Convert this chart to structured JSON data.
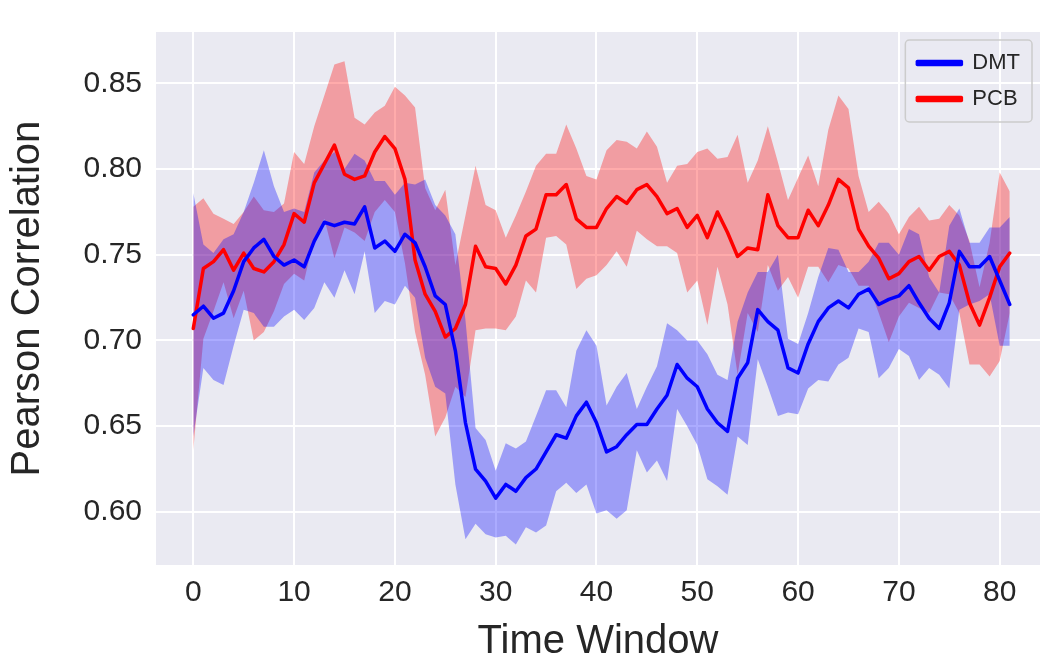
{
  "chart_data": {
    "type": "line",
    "xlabel": "Time Window",
    "ylabel": "Pearson Correlation",
    "x": [
      0,
      1,
      2,
      3,
      4,
      5,
      6,
      7,
      8,
      9,
      10,
      11,
      12,
      13,
      14,
      15,
      16,
      17,
      18,
      19,
      20,
      21,
      22,
      23,
      24,
      25,
      26,
      27,
      28,
      29,
      30,
      31,
      32,
      33,
      34,
      35,
      36,
      37,
      38,
      39,
      40,
      41,
      42,
      43,
      44,
      45,
      46,
      47,
      48,
      49,
      50,
      51,
      52,
      53,
      54,
      55,
      56,
      57,
      58,
      59,
      60,
      61,
      62,
      63,
      64,
      65,
      66,
      67,
      68,
      69,
      70,
      71,
      72,
      73,
      74,
      75,
      76,
      77,
      78,
      79,
      80,
      81
    ],
    "xlim": [
      -3.7,
      84
    ],
    "xticks": [
      0,
      10,
      20,
      30,
      40,
      50,
      60,
      70,
      80
    ],
    "ylim": [
      0.569,
      0.88
    ],
    "yticks": [
      {
        "value": 0.6,
        "label": "0.60"
      },
      {
        "value": 0.65,
        "label": "0.65"
      },
      {
        "value": 0.7,
        "label": "0.70"
      },
      {
        "value": 0.75,
        "label": "0.75"
      },
      {
        "value": 0.8,
        "label": "0.80"
      },
      {
        "value": 0.85,
        "label": "0.85"
      }
    ],
    "grid": true,
    "legend": "top right",
    "marker": "none",
    "line_style": "solid",
    "series": [
      {
        "name": "DMT",
        "color": "#0000ff",
        "values": [
          0.715,
          0.72,
          0.713,
          0.716,
          0.729,
          0.746,
          0.754,
          0.759,
          0.749,
          0.744,
          0.747,
          0.743,
          0.758,
          0.769,
          0.767,
          0.769,
          0.768,
          0.778,
          0.754,
          0.758,
          0.752,
          0.762,
          0.757,
          0.743,
          0.726,
          0.721,
          0.694,
          0.652,
          0.625,
          0.618,
          0.608,
          0.616,
          0.612,
          0.62,
          0.625,
          0.635,
          0.645,
          0.643,
          0.656,
          0.664,
          0.652,
          0.635,
          0.638,
          0.645,
          0.651,
          0.651,
          0.66,
          0.668,
          0.686,
          0.678,
          0.673,
          0.66,
          0.652,
          0.647,
          0.678,
          0.687,
          0.718,
          0.711,
          0.706,
          0.684,
          0.681,
          0.698,
          0.711,
          0.719,
          0.723,
          0.719,
          0.727,
          0.73,
          0.721,
          0.724,
          0.726,
          0.732,
          0.722,
          0.713,
          0.707,
          0.722,
          0.752,
          0.743,
          0.743,
          0.749,
          0.735,
          0.721
        ],
        "lower": [
          0.644,
          0.684,
          0.677,
          0.674,
          0.697,
          0.718,
          0.716,
          0.708,
          0.708,
          0.714,
          0.718,
          0.712,
          0.719,
          0.734,
          0.725,
          0.741,
          0.727,
          0.752,
          0.716,
          0.723,
          0.721,
          0.732,
          0.725,
          0.69,
          0.673,
          0.669,
          0.616,
          0.584,
          0.593,
          0.587,
          0.585,
          0.586,
          0.581,
          0.591,
          0.588,
          0.592,
          0.612,
          0.617,
          0.611,
          0.616,
          0.599,
          0.601,
          0.596,
          0.601,
          0.636,
          0.623,
          0.63,
          0.618,
          0.66,
          0.65,
          0.639,
          0.619,
          0.615,
          0.61,
          0.644,
          0.639,
          0.689,
          0.673,
          0.656,
          0.658,
          0.657,
          0.672,
          0.677,
          0.676,
          0.686,
          0.69,
          0.707,
          0.705,
          0.678,
          0.684,
          0.695,
          0.691,
          0.677,
          0.684,
          0.68,
          0.672,
          0.718,
          0.721,
          0.723,
          0.727,
          0.697,
          0.697
        ],
        "upper": [
          0.786,
          0.756,
          0.751,
          0.759,
          0.762,
          0.775,
          0.792,
          0.811,
          0.79,
          0.775,
          0.777,
          0.775,
          0.798,
          0.805,
          0.81,
          0.8,
          0.809,
          0.805,
          0.793,
          0.793,
          0.785,
          0.792,
          0.791,
          0.794,
          0.779,
          0.773,
          0.762,
          0.712,
          0.649,
          0.642,
          0.624,
          0.64,
          0.637,
          0.641,
          0.656,
          0.671,
          0.671,
          0.661,
          0.694,
          0.706,
          0.697,
          0.662,
          0.673,
          0.681,
          0.66,
          0.673,
          0.685,
          0.71,
          0.706,
          0.7,
          0.7,
          0.692,
          0.68,
          0.677,
          0.711,
          0.728,
          0.74,
          0.74,
          0.75,
          0.701,
          0.698,
          0.716,
          0.737,
          0.754,
          0.753,
          0.74,
          0.74,
          0.746,
          0.757,
          0.757,
          0.75,
          0.765,
          0.762,
          0.737,
          0.728,
          0.767,
          0.777,
          0.757,
          0.757,
          0.766,
          0.766,
          0.772
        ]
      },
      {
        "name": "PCB",
        "color": "#ff0000",
        "values": [
          0.707,
          0.742,
          0.746,
          0.753,
          0.741,
          0.751,
          0.742,
          0.74,
          0.746,
          0.756,
          0.774,
          0.769,
          0.792,
          0.803,
          0.814,
          0.797,
          0.794,
          0.796,
          0.81,
          0.819,
          0.812,
          0.794,
          0.747,
          0.727,
          0.717,
          0.702,
          0.707,
          0.721,
          0.755,
          0.743,
          0.742,
          0.733,
          0.744,
          0.761,
          0.765,
          0.785,
          0.785,
          0.791,
          0.771,
          0.766,
          0.766,
          0.777,
          0.784,
          0.78,
          0.788,
          0.791,
          0.784,
          0.774,
          0.777,
          0.766,
          0.773,
          0.76,
          0.775,
          0.763,
          0.749,
          0.754,
          0.753,
          0.785,
          0.767,
          0.76,
          0.76,
          0.776,
          0.767,
          0.779,
          0.794,
          0.789,
          0.765,
          0.755,
          0.748,
          0.736,
          0.739,
          0.746,
          0.749,
          0.741,
          0.749,
          0.752,
          0.744,
          0.722,
          0.709,
          0.725,
          0.743,
          0.751
        ],
        "lower": [
          0.636,
          0.701,
          0.717,
          0.734,
          0.713,
          0.729,
          0.7,
          0.705,
          0.717,
          0.733,
          0.739,
          0.735,
          0.76,
          0.771,
          0.748,
          0.766,
          0.763,
          0.758,
          0.775,
          0.782,
          0.775,
          0.745,
          0.705,
          0.68,
          0.644,
          0.655,
          0.673,
          0.667,
          0.706,
          0.707,
          0.707,
          0.706,
          0.714,
          0.735,
          0.728,
          0.76,
          0.761,
          0.756,
          0.73,
          0.736,
          0.738,
          0.744,
          0.752,
          0.743,
          0.764,
          0.759,
          0.755,
          0.755,
          0.751,
          0.728,
          0.735,
          0.709,
          0.743,
          0.721,
          0.68,
          0.716,
          0.705,
          0.744,
          0.729,
          0.737,
          0.725,
          0.743,
          0.743,
          0.734,
          0.744,
          0.742,
          0.732,
          0.732,
          0.716,
          0.699,
          0.714,
          0.722,
          0.719,
          0.716,
          0.728,
          0.727,
          0.716,
          0.686,
          0.686,
          0.679,
          0.688,
          0.716
        ],
        "upper": [
          0.778,
          0.783,
          0.774,
          0.771,
          0.768,
          0.775,
          0.784,
          0.776,
          0.775,
          0.78,
          0.81,
          0.803,
          0.825,
          0.843,
          0.861,
          0.863,
          0.83,
          0.826,
          0.833,
          0.837,
          0.848,
          0.843,
          0.836,
          0.789,
          0.776,
          0.788,
          0.744,
          0.773,
          0.802,
          0.779,
          0.776,
          0.76,
          0.773,
          0.787,
          0.802,
          0.809,
          0.809,
          0.826,
          0.812,
          0.796,
          0.794,
          0.811,
          0.817,
          0.816,
          0.812,
          0.822,
          0.813,
          0.792,
          0.802,
          0.803,
          0.81,
          0.812,
          0.806,
          0.807,
          0.82,
          0.792,
          0.805,
          0.825,
          0.804,
          0.782,
          0.795,
          0.808,
          0.79,
          0.823,
          0.843,
          0.835,
          0.796,
          0.775,
          0.781,
          0.774,
          0.762,
          0.772,
          0.778,
          0.77,
          0.771,
          0.779,
          0.773,
          0.758,
          0.731,
          0.757,
          0.798,
          0.787
        ]
      }
    ]
  }
}
